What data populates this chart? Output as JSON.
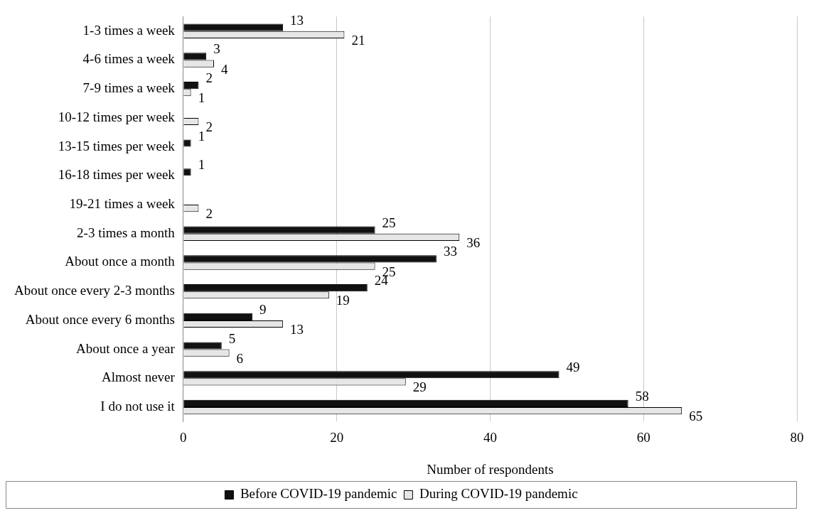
{
  "chart_data": {
    "type": "bar",
    "orientation": "horizontal",
    "xlabel": "Number of respondents",
    "categories": [
      "1-3 times a week",
      "4-6 times a week",
      "7-9 times a week",
      "10-12 times per week",
      "13-15 times per week",
      "16-18 times per week",
      "19-21 times a week",
      "2-3 times a month",
      "About once a month",
      "About once every 2-3 months",
      "About once every 6 months",
      "About once a year",
      "Almost never",
      "I do not use it"
    ],
    "series": [
      {
        "name": "Before COVID-19 pandemic",
        "color": "#111111",
        "values": [
          13,
          3,
          2,
          null,
          1,
          1,
          null,
          25,
          33,
          24,
          9,
          5,
          49,
          58
        ]
      },
      {
        "name": "During COVID-19 pandemic",
        "color": "#e6e6e6",
        "values": [
          21,
          4,
          1,
          2,
          null,
          null,
          2,
          36,
          25,
          19,
          13,
          6,
          29,
          65
        ]
      }
    ],
    "xlim": [
      0,
      80
    ],
    "xticks": [
      0,
      20,
      40,
      60,
      80
    ],
    "grid": "x",
    "legend": "bottom",
    "data_labels": true
  }
}
